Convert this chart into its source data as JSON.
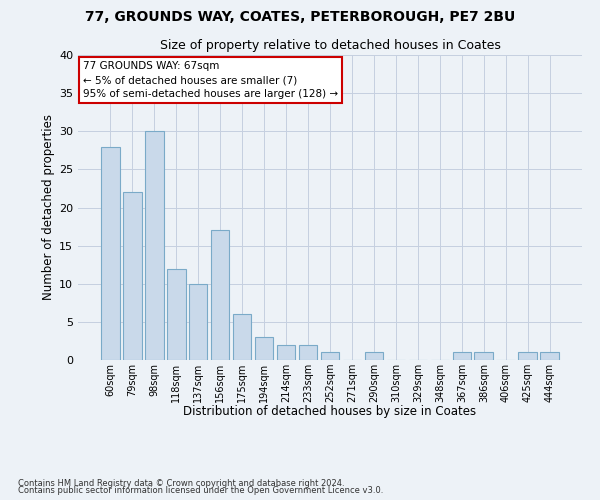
{
  "title1": "77, GROUNDS WAY, COATES, PETERBOROUGH, PE7 2BU",
  "title2": "Size of property relative to detached houses in Coates",
  "xlabel": "Distribution of detached houses by size in Coates",
  "ylabel": "Number of detached properties",
  "categories": [
    "60sqm",
    "79sqm",
    "98sqm",
    "118sqm",
    "137sqm",
    "156sqm",
    "175sqm",
    "194sqm",
    "214sqm",
    "233sqm",
    "252sqm",
    "271sqm",
    "290sqm",
    "310sqm",
    "329sqm",
    "348sqm",
    "367sqm",
    "386sqm",
    "406sqm",
    "425sqm",
    "444sqm"
  ],
  "values": [
    28,
    22,
    30,
    12,
    10,
    17,
    6,
    3,
    2,
    2,
    1,
    0,
    1,
    0,
    0,
    0,
    1,
    1,
    0,
    1,
    1
  ],
  "bar_color": "#c9d9ea",
  "bar_edge_color": "#7aaac8",
  "highlight_color": "#cc0000",
  "ylim": [
    0,
    40
  ],
  "yticks": [
    0,
    5,
    10,
    15,
    20,
    25,
    30,
    35,
    40
  ],
  "annotation_line1": "77 GROUNDS WAY: 67sqm",
  "annotation_line2": "← 5% of detached houses are smaller (7)",
  "annotation_line3": "95% of semi-detached houses are larger (128) →",
  "annotation_box_color": "#cc0000",
  "annotation_box_fill": "#ffffff",
  "footer_line1": "Contains HM Land Registry data © Crown copyright and database right 2024.",
  "footer_line2": "Contains public sector information licensed under the Open Government Licence v3.0.",
  "background_color": "#edf2f7",
  "grid_color": "#c5cfe0",
  "figsize": [
    6.0,
    5.0
  ],
  "dpi": 100
}
